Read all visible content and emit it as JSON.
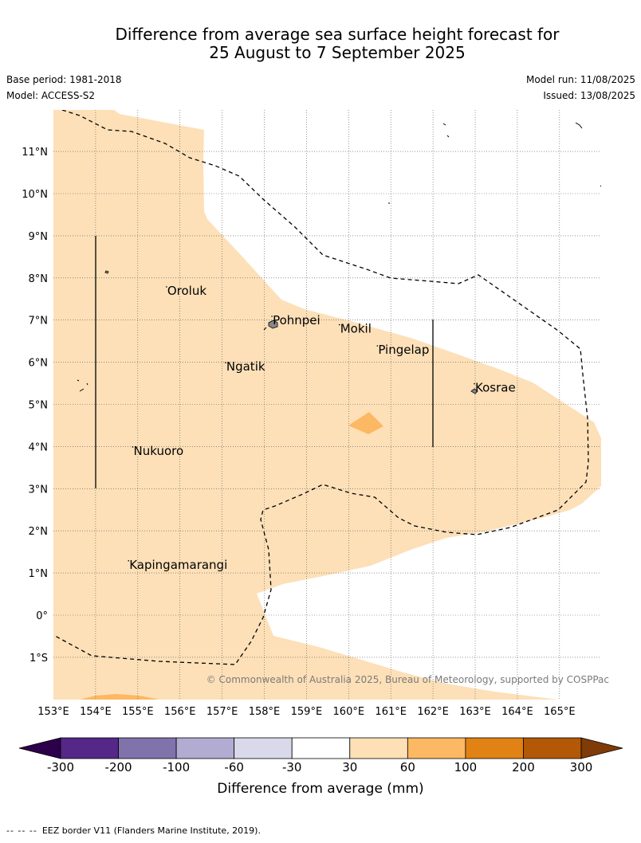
{
  "title": {
    "line1": "Difference from average sea surface height forecast for",
    "line2": "25 August to 7 September 2025"
  },
  "meta": {
    "base_period": "Base period: 1981-2018",
    "model": "Model: ACCESS-S2",
    "model_run": "Model run: 11/08/2025",
    "issued": "Issued: 13/08/2025"
  },
  "map": {
    "lon_range": [
      153,
      166
    ],
    "lat_range": [
      -2,
      12
    ],
    "lon_ticks": [
      "153°E",
      "154°E",
      "155°E",
      "156°E",
      "157°E",
      "158°E",
      "159°E",
      "160°E",
      "161°E",
      "162°E",
      "163°E",
      "164°E",
      "165°E"
    ],
    "lat_ticks": [
      "11°N",
      "10°N",
      "9°N",
      "8°N",
      "7°N",
      "6°N",
      "5°N",
      "4°N",
      "3°N",
      "2°N",
      "1°N",
      "0°",
      "1°S"
    ],
    "grid": true,
    "places": [
      {
        "name": "Oroluk",
        "lon": 155.7,
        "lat": 7.6
      },
      {
        "name": "Pohnpei",
        "lon": 158.2,
        "lat": 6.9
      },
      {
        "name": "Mokil",
        "lon": 159.8,
        "lat": 6.7
      },
      {
        "name": "Pingelap",
        "lon": 160.7,
        "lat": 6.2
      },
      {
        "name": "Ngatik",
        "lon": 157.1,
        "lat": 5.8
      },
      {
        "name": "Kosrae",
        "lon": 163.0,
        "lat": 5.3
      },
      {
        "name": "Nukuoro",
        "lon": 154.9,
        "lat": 3.8
      },
      {
        "name": "Kapingamarangi",
        "lon": 154.8,
        "lat": 1.1
      }
    ],
    "copyright": "© Commonwealth of Australia 2025, Bureau of Meteorology, supported by COSPPac",
    "colors": {
      "light_orange": "#fde0b8",
      "mid_orange": "#fdb863",
      "land": "#888888"
    }
  },
  "legend": {
    "title": "Difference from average (mm)",
    "labels": [
      "-300",
      "-200",
      "-100",
      "-60",
      "-30",
      "30",
      "60",
      "100",
      "200",
      "300"
    ],
    "colors": [
      "#542788",
      "#8073ac",
      "#b2abd2",
      "#d8daeb",
      "#ffffff",
      "#fee0b6",
      "#fdb863",
      "#e08214",
      "#b35806"
    ],
    "under_color": "#2d004b",
    "over_color": "#7f3b08"
  },
  "footnote": "EEZ border V11 (Flanders Marine Institute, 2019)."
}
